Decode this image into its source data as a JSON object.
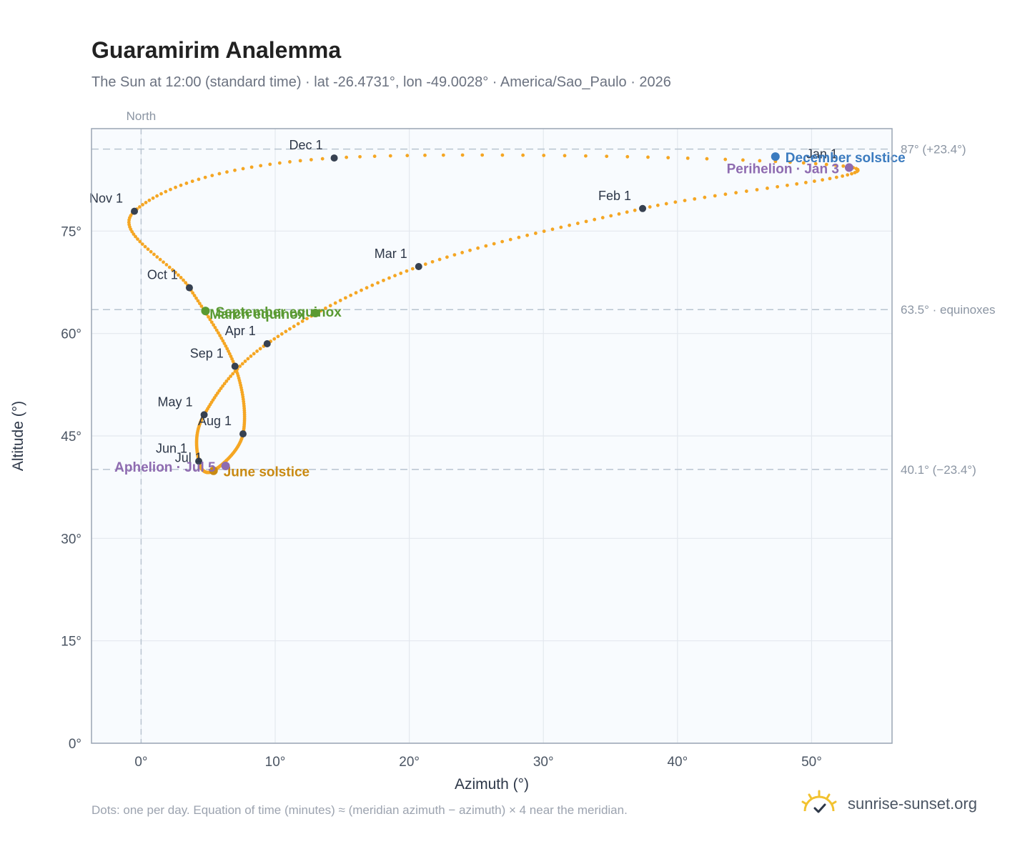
{
  "header": {
    "title": "Guaramirim Analemma",
    "subtitle": "The Sun at 12:00 (standard time) · lat -26.4731°, lon -49.0028° · America/Sao_Paulo · 2026"
  },
  "footer": {
    "note": "Dots: one per day. Equation of time (minutes) ≈ (meridian azimuth − azimuth) × 4 near the meridian.",
    "brand": "sunrise-sunset.org"
  },
  "colors": {
    "curve": "#f5a623",
    "month_marker": "#374151",
    "december_solstice": "#3b7bbf",
    "june_solstice": "#c98a12",
    "equinox": "#5a9a32",
    "apsis": "#8e6bb0",
    "reference_line": "#b8c4d0",
    "plot_bg": "#f8fbfe"
  },
  "chart_data": {
    "type": "scatter",
    "title": "Guaramirim Analemma",
    "xlabel": "Azimuth (°)",
    "ylabel": "Altitude (°)",
    "xlim": [
      -3.7,
      56
    ],
    "ylim": [
      0,
      90
    ],
    "xticks": [
      0,
      10,
      20,
      30,
      40,
      50
    ],
    "xtick_labels": [
      "0°",
      "10°",
      "20°",
      "30°",
      "40°",
      "50°"
    ],
    "yticks": [
      0,
      15,
      30,
      45,
      60,
      75
    ],
    "ytick_labels": [
      "0°",
      "15°",
      "30°",
      "45°",
      "60°",
      "75°"
    ],
    "grid": true,
    "north_label": "North",
    "north_azimuth": 0,
    "reference_lines": [
      {
        "altitude": 87.0,
        "label": "87° (+23.4°)"
      },
      {
        "altitude": 63.5,
        "label": "63.5° · equinoxes"
      },
      {
        "altitude": 40.1,
        "label": "40.1° (−23.4°)"
      }
    ],
    "month_markers": [
      {
        "label": "Jan 1",
        "azimuth": 52.8,
        "altitude": 84.4
      },
      {
        "label": "Feb 1",
        "azimuth": 37.4,
        "altitude": 78.3
      },
      {
        "label": "Mar 1",
        "azimuth": 20.7,
        "altitude": 69.8
      },
      {
        "label": "Apr 1",
        "azimuth": 9.4,
        "altitude": 58.5
      },
      {
        "label": "May 1",
        "azimuth": 4.7,
        "altitude": 48.1
      },
      {
        "label": "Jun 1",
        "azimuth": 4.3,
        "altitude": 41.3
      },
      {
        "label": "Jul 1",
        "azimuth": 5.4,
        "altitude": 39.9
      },
      {
        "label": "Aug 1",
        "azimuth": 7.6,
        "altitude": 45.3
      },
      {
        "label": "Sep 1",
        "azimuth": 7.0,
        "altitude": 55.2
      },
      {
        "label": "Oct 1",
        "azimuth": 3.6,
        "altitude": 66.7
      },
      {
        "label": "Nov 1",
        "azimuth": -0.5,
        "altitude": 77.9
      },
      {
        "label": "Dec 1",
        "azimuth": 14.4,
        "altitude": 85.7
      }
    ],
    "events": [
      {
        "label": "December solstice",
        "azimuth": 47.3,
        "altitude": 85.9,
        "kind": "december_solstice"
      },
      {
        "label": "Perihelion · Jan 3",
        "azimuth": 52.8,
        "altitude": 84.3,
        "kind": "apsis"
      },
      {
        "label": "March equinox",
        "azimuth": 13.0,
        "altitude": 63.0,
        "kind": "equinox"
      },
      {
        "label": "September equinox",
        "azimuth": 4.8,
        "altitude": 63.3,
        "kind": "equinox"
      },
      {
        "label": "June solstice",
        "azimuth": 5.4,
        "altitude": 39.9,
        "kind": "june_solstice"
      },
      {
        "label": "Aphelion · Jul 5",
        "azimuth": 6.3,
        "altitude": 40.6,
        "kind": "apsis"
      }
    ]
  }
}
